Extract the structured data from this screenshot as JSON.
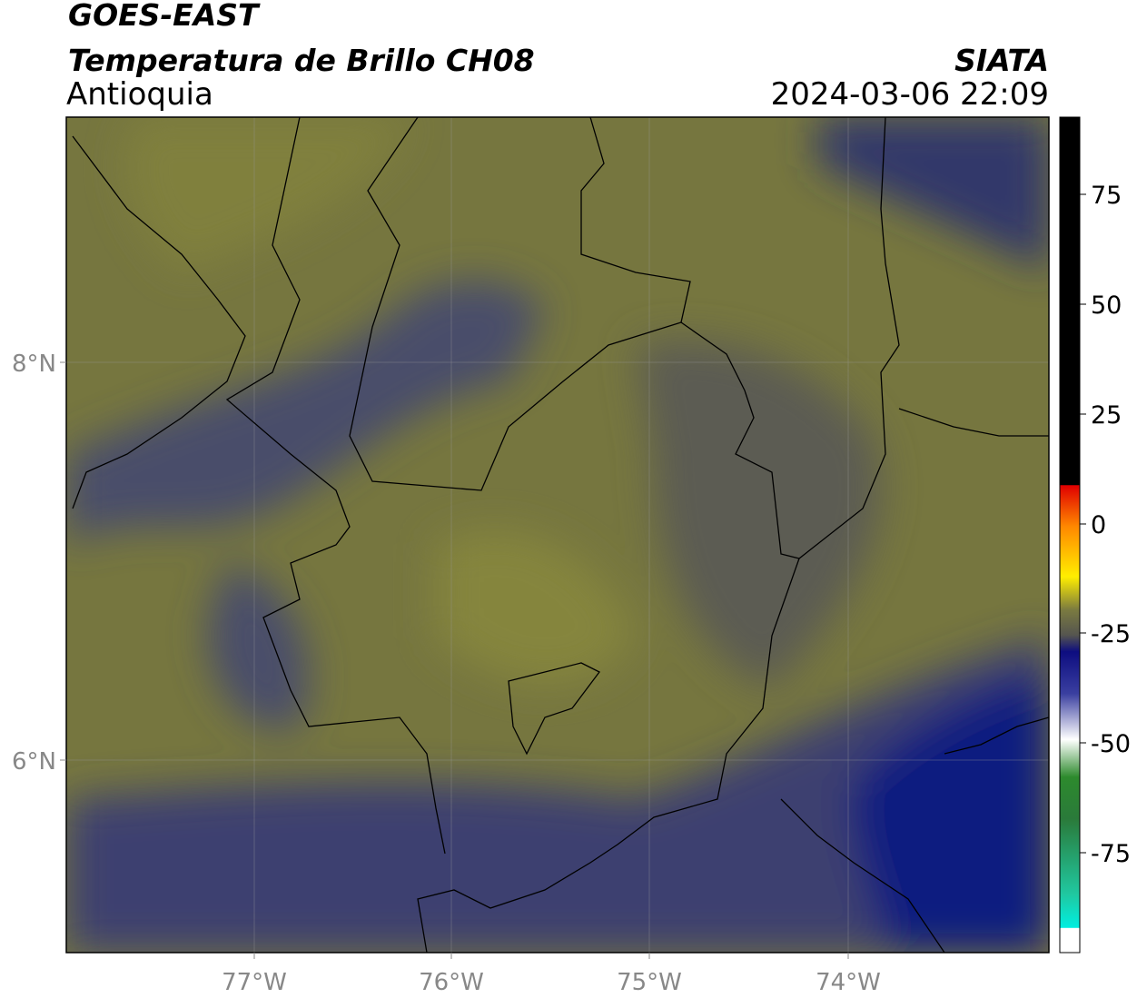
{
  "header": {
    "satellite": "GOES-EAST",
    "product": "Temperatura de Brillo CH08",
    "region": "Antioquia",
    "source": "SIATA",
    "datetime": "2024-03-06 22:09"
  },
  "map": {
    "latitude_labels": [
      "8°N",
      "6°N"
    ],
    "longitude_labels": [
      "77°W",
      "76°W",
      "75°W",
      "74°W"
    ]
  },
  "colorbar": {
    "tick_labels": [
      "75",
      "50",
      "25",
      "0",
      "-25",
      "-50",
      "-75"
    ]
  }
}
